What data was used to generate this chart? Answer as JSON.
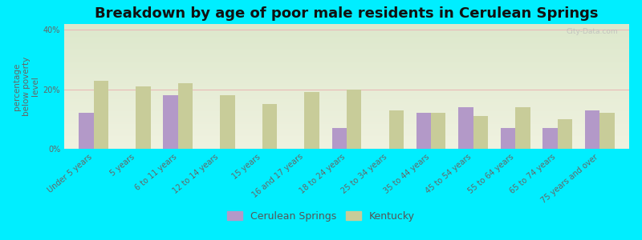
{
  "title": "Breakdown by age of poor male residents in Cerulean Springs",
  "ylabel": "percentage\nbelow poverty\nlevel",
  "categories": [
    "Under 5 years",
    "5 years",
    "6 to 11 years",
    "12 to 14 years",
    "15 years",
    "16 and 17 years",
    "18 to 24 years",
    "25 to 34 years",
    "35 to 44 years",
    "45 to 54 years",
    "55 to 64 years",
    "65 to 74 years",
    "75 years and over"
  ],
  "cerulean_values": [
    12,
    0,
    18,
    0,
    0,
    0,
    7,
    0,
    12,
    14,
    7,
    7,
    13
  ],
  "kentucky_values": [
    23,
    21,
    22,
    18,
    15,
    19,
    20,
    13,
    12,
    11,
    14,
    10,
    12
  ],
  "cerulean_color": "#b399c8",
  "kentucky_color": "#c8cc99",
  "bg_color_outer": "#00eeff",
  "bg_color_plot_top": "#dde8cc",
  "bg_color_plot_bottom": "#f0f2e0",
  "ylim": [
    0,
    42
  ],
  "yticks": [
    0,
    20,
    40
  ],
  "ytick_labels": [
    "0%",
    "20%",
    "40%"
  ],
  "bar_width": 0.35,
  "legend_cerulean": "Cerulean Springs",
  "legend_kentucky": "Kentucky",
  "title_fontsize": 13,
  "axis_label_fontsize": 7.5,
  "tick_fontsize": 7,
  "legend_fontsize": 9
}
